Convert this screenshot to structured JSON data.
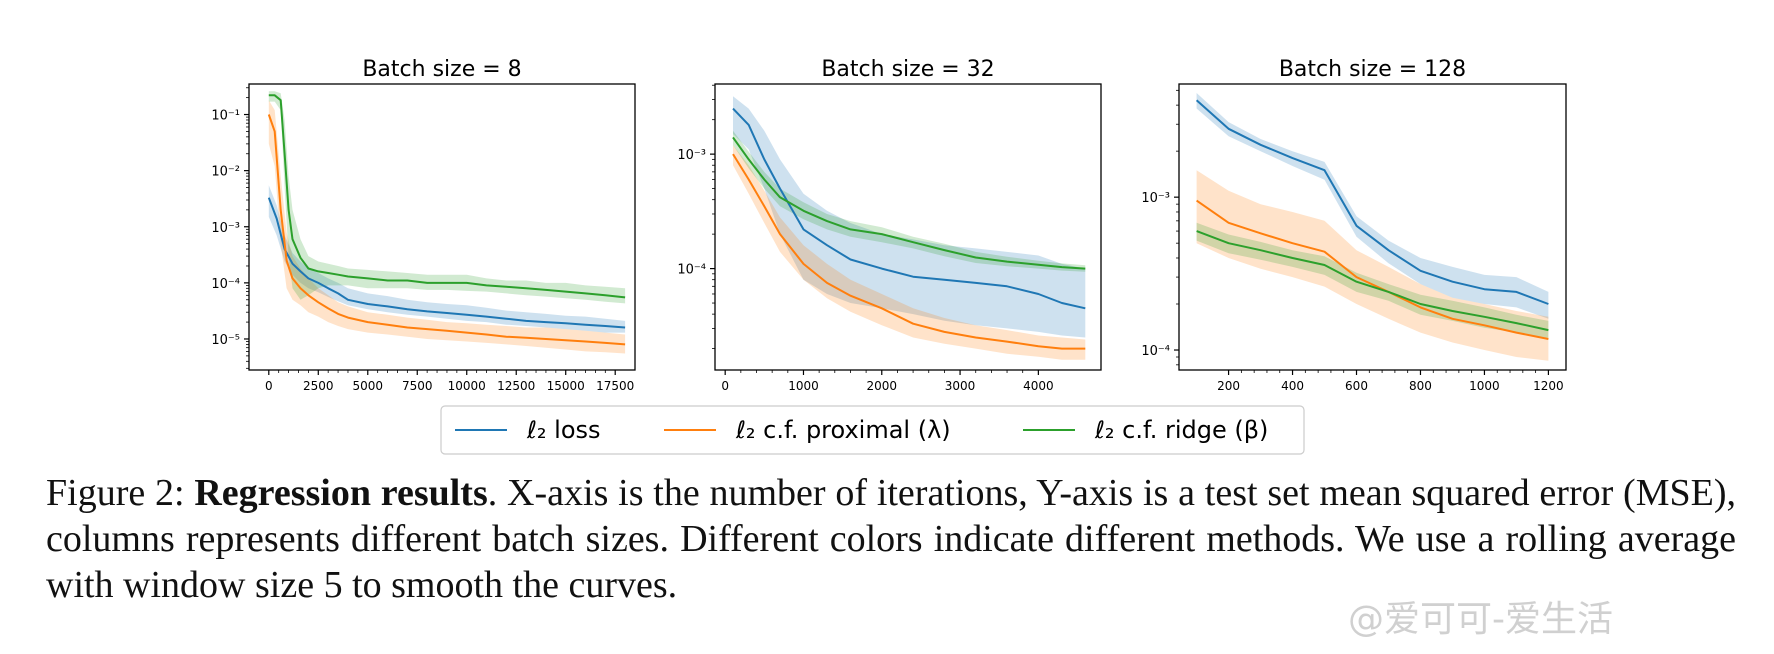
{
  "chart_data": [
    {
      "type": "line",
      "title": "Batch size = 8",
      "xlabel": "",
      "ylabel": "",
      "yscale": "log",
      "xlim": [
        -1000,
        18500
      ],
      "ylim": [
        2.8e-06,
        0.35
      ],
      "xticks": [
        0,
        2500,
        5000,
        7500,
        10000,
        12500,
        15000,
        17500
      ],
      "xticklabels": [
        "0",
        "2500",
        "5000",
        "7500",
        "10000",
        "12500",
        "15000",
        "17500"
      ],
      "yticks": [
        0.1,
        0.01,
        0.001,
        0.0001,
        1e-05
      ],
      "yticklabels": [
        "10⁻¹",
        "10⁻²",
        "10⁻³",
        "10⁻⁴",
        "10⁻⁵"
      ],
      "series": [
        {
          "name": "blue",
          "x": [
            0,
            400,
            800,
            1200,
            1600,
            2000,
            2500,
            3000,
            3500,
            4000,
            5000,
            6000,
            7000,
            8000,
            9000,
            10000,
            11000,
            12000,
            13000,
            14000,
            15000,
            16000,
            17000,
            18000
          ],
          "y": [
            0.0033,
            0.0014,
            0.0004,
            0.00022,
            0.00016,
            0.00012,
            0.0001,
            8e-05,
            6.5e-05,
            5e-05,
            4.2e-05,
            3.8e-05,
            3.4e-05,
            3.1e-05,
            2.9e-05,
            2.7e-05,
            2.5e-05,
            2.3e-05,
            2.1e-05,
            2e-05,
            1.9e-05,
            1.8e-05,
            1.7e-05,
            1.6e-05
          ],
          "lower": [
            0.0015,
            0.0007,
            0.00024,
            0.00014,
            0.0001,
            8e-05,
            6.8e-05,
            5.6e-05,
            4.7e-05,
            4e-05,
            3.4e-05,
            3e-05,
            2.7e-05,
            2.5e-05,
            2.3e-05,
            2.1e-05,
            2e-05,
            1.8e-05,
            1.7e-05,
            1.6e-05,
            1.5e-05,
            1.4e-05,
            1.3e-05,
            1.3e-05
          ],
          "upper": [
            0.0055,
            0.0024,
            0.0007,
            0.00034,
            0.00024,
            0.00018,
            0.00015,
            0.00012,
            0.0001,
            8e-05,
            6.5e-05,
            5.8e-05,
            5e-05,
            4.5e-05,
            4.2e-05,
            4e-05,
            3.6e-05,
            3.2e-05,
            3e-05,
            2.8e-05,
            2.6e-05,
            2.5e-05,
            2.3e-05,
            2.1e-05
          ]
        },
        {
          "name": "orange",
          "x": [
            0,
            300,
            600,
            900,
            1200,
            1600,
            2000,
            2500,
            3000,
            3500,
            4000,
            5000,
            6000,
            7000,
            8000,
            9000,
            10000,
            11000,
            12000,
            13000,
            14000,
            15000,
            16000,
            17000,
            18000
          ],
          "y": [
            0.1,
            0.05,
            0.002,
            0.00025,
            0.00012,
            8e-05,
            6e-05,
            4.5e-05,
            3.5e-05,
            2.8e-05,
            2.4e-05,
            2e-05,
            1.8e-05,
            1.6e-05,
            1.5e-05,
            1.4e-05,
            1.3e-05,
            1.2e-05,
            1.1e-05,
            1.05e-05,
            1e-05,
            9.5e-06,
            9e-06,
            8.5e-06,
            8e-06
          ],
          "lower": [
            0.03,
            0.012,
            0.0005,
            8e-05,
            5e-05,
            4e-05,
            3e-05,
            2.5e-05,
            2e-05,
            1.7e-05,
            1.5e-05,
            1.3e-05,
            1.2e-05,
            1.1e-05,
            1e-05,
            9.5e-06,
            9e-06,
            8.5e-06,
            8e-06,
            7.5e-06,
            7e-06,
            6.5e-06,
            6e-06,
            5.8e-06,
            5.5e-06
          ],
          "upper": [
            0.18,
            0.12,
            0.008,
            0.0008,
            0.0003,
            0.00018,
            0.00012,
            8e-05,
            6e-05,
            4.5e-05,
            3.8e-05,
            3e-05,
            2.7e-05,
            2.4e-05,
            2.2e-05,
            2e-05,
            1.9e-05,
            1.8e-05,
            1.7e-05,
            1.6e-05,
            1.6e-05,
            1.5e-05,
            1.4e-05,
            1.3e-05,
            1.2e-05
          ]
        },
        {
          "name": "green",
          "x": [
            0,
            300,
            600,
            800,
            1000,
            1200,
            1600,
            2000,
            2500,
            3000,
            3500,
            4000,
            5000,
            6000,
            7000,
            8000,
            9000,
            10000,
            11000,
            12000,
            13000,
            14000,
            15000,
            16000,
            17000,
            18000
          ],
          "y": [
            0.22,
            0.22,
            0.18,
            0.02,
            0.002,
            0.0006,
            0.00028,
            0.00018,
            0.00016,
            0.00015,
            0.00014,
            0.00013,
            0.00012,
            0.00011,
            0.00011,
            0.0001,
            0.0001,
            0.0001,
            9e-05,
            8.5e-05,
            8e-05,
            7.5e-05,
            7e-05,
            6.5e-05,
            6e-05,
            5.5e-05
          ],
          "lower": [
            0.17,
            0.17,
            0.12,
            0.005,
            0.0003,
            8e-05,
            5e-05,
            6e-05,
            8e-05,
            9e-05,
            9e-05,
            9e-05,
            8e-05,
            8e-05,
            8e-05,
            7.5e-05,
            7.5e-05,
            7.2e-05,
            7e-05,
            6.5e-05,
            6e-05,
            5.7e-05,
            5.3e-05,
            5e-05,
            4.6e-05,
            4.3e-05
          ],
          "upper": [
            0.26,
            0.26,
            0.24,
            0.08,
            0.008,
            0.002,
            0.0006,
            0.0003,
            0.00024,
            0.00022,
            0.0002,
            0.00018,
            0.00017,
            0.00016,
            0.00015,
            0.00014,
            0.00014,
            0.00014,
            0.00012,
            0.00011,
            0.00011,
            0.0001,
            0.0001,
            9e-05,
            8.5e-05,
            8e-05
          ]
        }
      ]
    },
    {
      "type": "line",
      "title": "Batch size = 32",
      "xlabel": "",
      "ylabel": "",
      "yscale": "log",
      "xlim": [
        -130,
        4800
      ],
      "ylim": [
        1.3e-05,
        0.0041
      ],
      "xticks": [
        0,
        1000,
        2000,
        3000,
        4000
      ],
      "xticklabels": [
        "0",
        "1000",
        "2000",
        "3000",
        "4000"
      ],
      "yticks": [
        0.001,
        0.0001
      ],
      "yticklabels": [
        "10⁻³",
        "10⁻⁴"
      ],
      "series": [
        {
          "name": "blue",
          "x": [
            100,
            300,
            500,
            700,
            1000,
            1300,
            1600,
            2000,
            2400,
            2800,
            3200,
            3600,
            4000,
            4300,
            4600
          ],
          "y": [
            0.0025,
            0.0018,
            0.0009,
            0.0005,
            0.00022,
            0.00016,
            0.00012,
            0.0001,
            8.5e-05,
            8e-05,
            7.5e-05,
            7e-05,
            6e-05,
            5e-05,
            4.5e-05
          ],
          "lower": [
            0.0015,
            0.0011,
            0.0005,
            0.0002,
            8e-05,
            6e-05,
            5e-05,
            4.5e-05,
            4e-05,
            3.5e-05,
            3.2e-05,
            3e-05,
            2.8e-05,
            2.6e-05,
            2.5e-05
          ],
          "upper": [
            0.0032,
            0.0025,
            0.0016,
            0.0009,
            0.00045,
            0.00032,
            0.00025,
            0.0002,
            0.00018,
            0.00016,
            0.00015,
            0.00014,
            0.00013,
            0.00011,
            0.0001
          ]
        },
        {
          "name": "orange",
          "x": [
            100,
            300,
            500,
            700,
            1000,
            1300,
            1600,
            2000,
            2400,
            2800,
            3200,
            3600,
            4000,
            4300,
            4600
          ],
          "y": [
            0.001,
            0.0006,
            0.00035,
            0.0002,
            0.00011,
            7.5e-05,
            5.8e-05,
            4.5e-05,
            3.3e-05,
            2.8e-05,
            2.5e-05,
            2.3e-05,
            2.1e-05,
            2e-05,
            2e-05
          ],
          "lower": [
            0.0008,
            0.00045,
            0.00025,
            0.00014,
            8e-05,
            5.5e-05,
            4.2e-05,
            3.2e-05,
            2.5e-05,
            2.2e-05,
            2e-05,
            1.8e-05,
            1.7e-05,
            1.6e-05,
            1.6e-05
          ],
          "upper": [
            0.0012,
            0.0008,
            0.00048,
            0.00028,
            0.00016,
            0.00011,
            8e-05,
            6e-05,
            4.5e-05,
            3.7e-05,
            3.2e-05,
            2.9e-05,
            2.6e-05,
            2.5e-05,
            2.4e-05
          ]
        },
        {
          "name": "green",
          "x": [
            100,
            300,
            500,
            700,
            1000,
            1300,
            1600,
            2000,
            2400,
            2800,
            3200,
            3600,
            4000,
            4300,
            4600
          ],
          "y": [
            0.0014,
            0.0009,
            0.0006,
            0.00042,
            0.00032,
            0.00026,
            0.00022,
            0.0002,
            0.00017,
            0.000145,
            0.000125,
            0.000115,
            0.000108,
            0.000103,
            0.0001
          ],
          "lower": [
            0.0012,
            0.00075,
            0.0005,
            0.00035,
            0.00027,
            0.00022,
            0.00019,
            0.00017,
            0.00015,
            0.000128,
            0.000112,
            0.000105,
            0.0001,
            9.6e-05,
            9.4e-05
          ],
          "upper": [
            0.0016,
            0.00105,
            0.0007,
            0.0005,
            0.00038,
            0.0003,
            0.00026,
            0.00023,
            0.00019,
            0.000165,
            0.00014,
            0.000127,
            0.000117,
            0.000111,
            0.000107
          ]
        }
      ]
    },
    {
      "type": "line",
      "title": "Batch size = 128",
      "xlabel": "",
      "ylabel": "",
      "yscale": "log",
      "xlim": [
        45,
        1255
      ],
      "ylim": [
        7.4e-05,
        0.0055
      ],
      "xticks": [
        200,
        400,
        600,
        800,
        1000,
        1200
      ],
      "xticklabels": [
        "200",
        "400",
        "600",
        "800",
        "1000",
        "1200"
      ],
      "yticks": [
        0.001,
        0.0001
      ],
      "yticklabels": [
        "10⁻³",
        "10⁻⁴"
      ],
      "series": [
        {
          "name": "blue",
          "x": [
            100,
            200,
            300,
            400,
            500,
            600,
            700,
            800,
            900,
            1000,
            1100,
            1200
          ],
          "y": [
            0.0043,
            0.0028,
            0.0022,
            0.0018,
            0.0015,
            0.00065,
            0.00045,
            0.00033,
            0.00028,
            0.00025,
            0.00024,
            0.0002
          ],
          "lower": [
            0.0038,
            0.0025,
            0.002,
            0.0016,
            0.0013,
            0.00055,
            0.00037,
            0.00027,
            0.00022,
            0.0002,
            0.00019,
            0.00016
          ],
          "upper": [
            0.0048,
            0.0031,
            0.0024,
            0.002,
            0.0017,
            0.00075,
            0.00052,
            0.0004,
            0.00035,
            0.00031,
            0.0003,
            0.00024
          ]
        },
        {
          "name": "orange",
          "x": [
            100,
            200,
            300,
            400,
            500,
            600,
            700,
            800,
            900,
            1000,
            1100,
            1200
          ],
          "y": [
            0.00095,
            0.00068,
            0.00058,
            0.0005,
            0.00044,
            0.0003,
            0.00024,
            0.00019,
            0.00016,
            0.000145,
            0.00013,
            0.000118
          ],
          "lower": [
            0.0005,
            0.0004,
            0.00034,
            0.0003,
            0.00026,
            0.0002,
            0.00016,
            0.00013,
            0.000112,
            0.0001,
            9e-05,
            8.5e-05
          ],
          "upper": [
            0.0015,
            0.0011,
            0.0009,
            0.0008,
            0.0007,
            0.00045,
            0.00035,
            0.00027,
            0.00022,
            0.0002,
            0.00018,
            0.000165
          ]
        },
        {
          "name": "green",
          "x": [
            100,
            200,
            300,
            400,
            500,
            600,
            700,
            800,
            900,
            1000,
            1100,
            1200
          ],
          "y": [
            0.0006,
            0.0005,
            0.00045,
            0.0004,
            0.00036,
            0.00028,
            0.00024,
            0.0002,
            0.00018,
            0.000165,
            0.00015,
            0.000135
          ],
          "lower": [
            0.00052,
            0.00043,
            0.00039,
            0.00035,
            0.00031,
            0.00024,
            0.00021,
            0.00017,
            0.000155,
            0.00014,
            0.00013,
            0.00012
          ],
          "upper": [
            0.00068,
            0.00057,
            0.00051,
            0.00045,
            0.00041,
            0.00032,
            0.00027,
            0.00023,
            0.00021,
            0.00019,
            0.00017,
            0.000155
          ]
        }
      ]
    }
  ],
  "legend": {
    "placement": "bottom-center",
    "entries": [
      {
        "label": "ℓ₂ loss",
        "color": "#1f77b4"
      },
      {
        "label": "ℓ₂ c.f. proximal (λ)",
        "color": "#ff7f0e"
      },
      {
        "label": "ℓ₂ c.f. ridge (β)",
        "color": "#2ca02c"
      }
    ]
  },
  "colors": {
    "blue": "#1f77b4",
    "orange": "#ff7f0e",
    "green": "#2ca02c"
  },
  "caption": {
    "prefix": "Figure 2: ",
    "bold": "Regression results",
    "rest": ". X-axis is the number of iterations, Y-axis is a test set mean squared error (MSE), columns represents different batch sizes. Different colors indicate different methods. We use a rolling average with window size 5 to smooth the curves."
  },
  "watermark": "@爱可可-爱生活"
}
